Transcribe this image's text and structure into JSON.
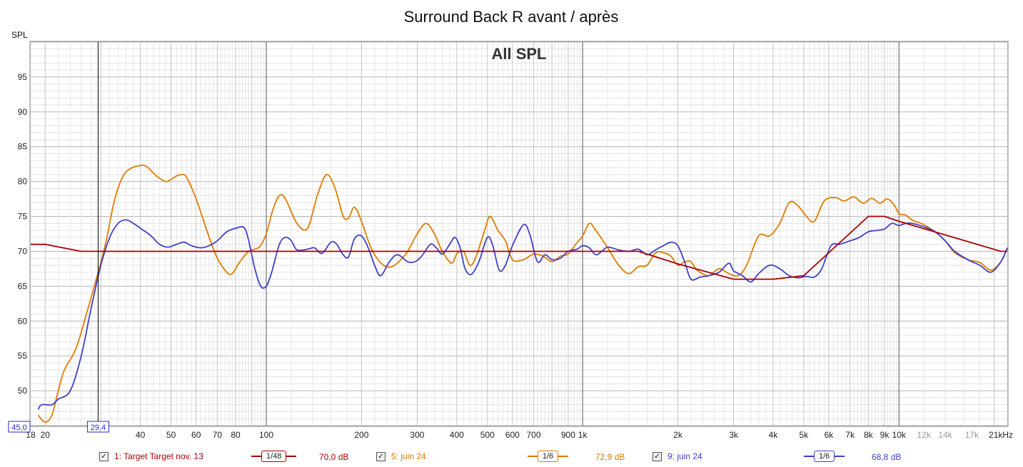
{
  "chart_data": {
    "type": "line",
    "title": "Surround Back R avant / après",
    "subtitle": "All SPL",
    "ylabel": "SPL",
    "xscale": "log",
    "xlim": [
      18,
      22000
    ],
    "ylim": [
      45,
      100
    ],
    "y_ticks": [
      50,
      55,
      60,
      65,
      70,
      75,
      80,
      85,
      90,
      95
    ],
    "x_tick_labels": [
      {
        "f": 18,
        "label": "18"
      },
      {
        "f": 20,
        "label": "20"
      },
      {
        "f": 40,
        "label": "40"
      },
      {
        "f": 50,
        "label": "50"
      },
      {
        "f": 60,
        "label": "60"
      },
      {
        "f": 70,
        "label": "70"
      },
      {
        "f": 80,
        "label": "80"
      },
      {
        "f": 100,
        "label": "100"
      },
      {
        "f": 200,
        "label": "200"
      },
      {
        "f": 300,
        "label": "300"
      },
      {
        "f": 400,
        "label": "400"
      },
      {
        "f": 500,
        "label": "500"
      },
      {
        "f": 600,
        "label": "600"
      },
      {
        "f": 700,
        "label": "700"
      },
      {
        "f": 900,
        "label": "900"
      },
      {
        "f": 1000,
        "label": "1k"
      },
      {
        "f": 2000,
        "label": "2k"
      },
      {
        "f": 3000,
        "label": "3k"
      },
      {
        "f": 4000,
        "label": "4k"
      },
      {
        "f": 5000,
        "label": "5k"
      },
      {
        "f": 6000,
        "label": "6k"
      },
      {
        "f": 7000,
        "label": "7k"
      },
      {
        "f": 8000,
        "label": "8k"
      },
      {
        "f": 9000,
        "label": "9k"
      },
      {
        "f": 10000,
        "label": "10k"
      },
      {
        "f": 12000,
        "label": "12k"
      },
      {
        "f": 14000,
        "label": "14k"
      },
      {
        "f": 17000,
        "label": "17k"
      },
      {
        "f": 21000,
        "label": "21kHz"
      }
    ],
    "cursor": {
      "x_label": "29,4",
      "y_label": "45,0",
      "x_value": 29.4
    },
    "series": [
      {
        "name": "1: Target Target nov. 13",
        "color": "#aa0000",
        "smoothing": "1/48",
        "level": "70,0 dB",
        "points": [
          [
            18,
            71
          ],
          [
            20,
            71
          ],
          [
            26,
            70
          ],
          [
            100,
            70
          ],
          [
            1000,
            70
          ],
          [
            1500,
            70
          ],
          [
            2000,
            68.2
          ],
          [
            3000,
            66
          ],
          [
            4000,
            66
          ],
          [
            5000,
            66.5
          ],
          [
            8000,
            75
          ],
          [
            9000,
            75
          ],
          [
            10000,
            74.3
          ],
          [
            21000,
            70
          ],
          [
            22000,
            70
          ]
        ]
      },
      {
        "name": "5: juin 24",
        "color": "#e07b00",
        "smoothing": "1/6",
        "level": "72,9 dB",
        "points": [
          [
            19,
            46.5
          ],
          [
            20,
            45.5
          ],
          [
            21,
            46.5
          ],
          [
            22,
            50
          ],
          [
            23,
            53
          ],
          [
            25,
            56
          ],
          [
            27,
            61
          ],
          [
            29,
            66
          ],
          [
            31,
            71
          ],
          [
            33,
            77
          ],
          [
            35,
            80.5
          ],
          [
            37,
            81.8
          ],
          [
            40,
            82.3
          ],
          [
            42,
            82.1
          ],
          [
            45,
            80.8
          ],
          [
            48,
            80
          ],
          [
            50,
            80.3
          ],
          [
            52,
            80.8
          ],
          [
            54,
            81
          ],
          [
            56,
            80.6
          ],
          [
            60,
            77.5
          ],
          [
            66,
            72
          ],
          [
            70,
            69
          ],
          [
            75,
            67
          ],
          [
            78,
            66.8
          ],
          [
            82,
            68.3
          ],
          [
            88,
            70
          ],
          [
            95,
            70.6
          ],
          [
            100,
            72.5
          ],
          [
            105,
            76
          ],
          [
            110,
            78
          ],
          [
            115,
            77.5
          ],
          [
            125,
            74
          ],
          [
            135,
            73.3
          ],
          [
            145,
            78
          ],
          [
            155,
            81
          ],
          [
            165,
            79
          ],
          [
            175,
            75
          ],
          [
            182,
            74.8
          ],
          [
            190,
            76.3
          ],
          [
            200,
            74.3
          ],
          [
            210,
            71.5
          ],
          [
            220,
            69.5
          ],
          [
            235,
            68
          ],
          [
            250,
            67.8
          ],
          [
            265,
            68.7
          ],
          [
            280,
            70
          ],
          [
            300,
            72.5
          ],
          [
            320,
            74
          ],
          [
            340,
            72.5
          ],
          [
            360,
            70
          ],
          [
            385,
            68.3
          ],
          [
            400,
            69.6
          ],
          [
            420,
            70
          ],
          [
            440,
            68
          ],
          [
            460,
            69.2
          ],
          [
            490,
            73
          ],
          [
            510,
            75
          ],
          [
            540,
            73
          ],
          [
            570,
            71.5
          ],
          [
            600,
            68.8
          ],
          [
            650,
            68.8
          ],
          [
            700,
            69.6
          ],
          [
            750,
            69.3
          ],
          [
            800,
            68.5
          ],
          [
            850,
            69.3
          ],
          [
            900,
            69.6
          ],
          [
            950,
            71
          ],
          [
            1000,
            72.2
          ],
          [
            1050,
            74
          ],
          [
            1100,
            73
          ],
          [
            1200,
            70.5
          ],
          [
            1300,
            68
          ],
          [
            1400,
            66.8
          ],
          [
            1500,
            67.8
          ],
          [
            1600,
            68
          ],
          [
            1700,
            69.8
          ],
          [
            1800,
            69.8
          ],
          [
            1900,
            69.3
          ],
          [
            2000,
            68
          ],
          [
            2100,
            68.5
          ],
          [
            2200,
            68.5
          ],
          [
            2300,
            67.3
          ],
          [
            2500,
            66.5
          ],
          [
            2700,
            67.5
          ],
          [
            2900,
            66.8
          ],
          [
            3100,
            66.5
          ],
          [
            3300,
            68
          ],
          [
            3600,
            72.2
          ],
          [
            3900,
            72.2
          ],
          [
            4200,
            74
          ],
          [
            4500,
            77
          ],
          [
            4800,
            76.5
          ],
          [
            5100,
            75
          ],
          [
            5400,
            74.3
          ],
          [
            5800,
            77.2
          ],
          [
            6300,
            77.7
          ],
          [
            6700,
            77.2
          ],
          [
            7200,
            77.8
          ],
          [
            7700,
            76.9
          ],
          [
            8200,
            77.6
          ],
          [
            8700,
            76.9
          ],
          [
            9200,
            77.5
          ],
          [
            9700,
            76.5
          ],
          [
            10000,
            75.4
          ],
          [
            10500,
            75.2
          ],
          [
            11000,
            74.5
          ],
          [
            12000,
            73.8
          ],
          [
            13000,
            72.8
          ],
          [
            14000,
            71.5
          ],
          [
            15000,
            69.8
          ],
          [
            16500,
            68.8
          ],
          [
            18000,
            68.4
          ],
          [
            19500,
            67.3
          ],
          [
            21000,
            68.5
          ],
          [
            22000,
            70.5
          ]
        ]
      },
      {
        "name": "9: juin 24",
        "color": "#4040c8",
        "smoothing": "1/6",
        "level": "68,8 dB",
        "points": [
          [
            19,
            47.3
          ],
          [
            19.5,
            48
          ],
          [
            21,
            48
          ],
          [
            22,
            48.8
          ],
          [
            24,
            50
          ],
          [
            26,
            55
          ],
          [
            28,
            62
          ],
          [
            30,
            68
          ],
          [
            32,
            72
          ],
          [
            34,
            74
          ],
          [
            36,
            74.5
          ],
          [
            38,
            74
          ],
          [
            40,
            73.3
          ],
          [
            43,
            72.3
          ],
          [
            46,
            71
          ],
          [
            49,
            70.6
          ],
          [
            52,
            71
          ],
          [
            55,
            71.3
          ],
          [
            58,
            70.8
          ],
          [
            62,
            70.5
          ],
          [
            66,
            70.8
          ],
          [
            70,
            71.5
          ],
          [
            75,
            72.8
          ],
          [
            80,
            73.3
          ],
          [
            85,
            73.4
          ],
          [
            88,
            71.5
          ],
          [
            92,
            67.5
          ],
          [
            96,
            65
          ],
          [
            100,
            65
          ],
          [
            104,
            67
          ],
          [
            110,
            71
          ],
          [
            115,
            72
          ],
          [
            120,
            71.5
          ],
          [
            125,
            70.2
          ],
          [
            135,
            70.3
          ],
          [
            142,
            70.5
          ],
          [
            150,
            69.7
          ],
          [
            160,
            71.3
          ],
          [
            167,
            71
          ],
          [
            175,
            69.5
          ],
          [
            182,
            69.2
          ],
          [
            190,
            71.8
          ],
          [
            200,
            72.2
          ],
          [
            210,
            70.5
          ],
          [
            220,
            68
          ],
          [
            230,
            66.5
          ],
          [
            245,
            68.5
          ],
          [
            260,
            69.5
          ],
          [
            280,
            68.5
          ],
          [
            295,
            68.5
          ],
          [
            310,
            69.3
          ],
          [
            330,
            71
          ],
          [
            345,
            70.5
          ],
          [
            360,
            69.6
          ],
          [
            380,
            71
          ],
          [
            395,
            72
          ],
          [
            410,
            70.5
          ],
          [
            425,
            67.5
          ],
          [
            445,
            66.7
          ],
          [
            470,
            68.5
          ],
          [
            500,
            72
          ],
          [
            520,
            70.8
          ],
          [
            545,
            67.3
          ],
          [
            570,
            68
          ],
          [
            600,
            70.8
          ],
          [
            650,
            73.8
          ],
          [
            680,
            72.5
          ],
          [
            720,
            68.5
          ],
          [
            760,
            69.5
          ],
          [
            800,
            68.8
          ],
          [
            850,
            69
          ],
          [
            900,
            70
          ],
          [
            960,
            70.3
          ],
          [
            1000,
            70.8
          ],
          [
            1050,
            70.5
          ],
          [
            1100,
            69.5
          ],
          [
            1150,
            70
          ],
          [
            1200,
            70.6
          ],
          [
            1300,
            70.2
          ],
          [
            1400,
            70
          ],
          [
            1500,
            70.3
          ],
          [
            1600,
            69.5
          ],
          [
            1700,
            70.2
          ],
          [
            1800,
            70.8
          ],
          [
            1900,
            71.3
          ],
          [
            2000,
            70.8
          ],
          [
            2100,
            68.5
          ],
          [
            2200,
            66
          ],
          [
            2350,
            66.3
          ],
          [
            2500,
            66.5
          ],
          [
            2700,
            67
          ],
          [
            2900,
            68.3
          ],
          [
            3000,
            67.2
          ],
          [
            3200,
            66.5
          ],
          [
            3400,
            65.6
          ],
          [
            3600,
            66.8
          ],
          [
            3900,
            68
          ],
          [
            4200,
            67.5
          ],
          [
            4500,
            66.5
          ],
          [
            4800,
            66.2
          ],
          [
            5100,
            66.4
          ],
          [
            5400,
            66.3
          ],
          [
            5700,
            67.5
          ],
          [
            6100,
            70.8
          ],
          [
            6500,
            71
          ],
          [
            7000,
            71.5
          ],
          [
            7500,
            72
          ],
          [
            8000,
            72.8
          ],
          [
            8500,
            73
          ],
          [
            9000,
            73.2
          ],
          [
            9500,
            74
          ],
          [
            10000,
            73.7
          ],
          [
            10500,
            74
          ],
          [
            11000,
            74
          ],
          [
            12000,
            73.5
          ],
          [
            13000,
            72.8
          ],
          [
            14000,
            71.5
          ],
          [
            15000,
            70
          ],
          [
            16500,
            68.8
          ],
          [
            18000,
            68
          ],
          [
            19500,
            67
          ],
          [
            21000,
            68.5
          ],
          [
            22000,
            70.5
          ]
        ]
      }
    ]
  },
  "legend": {
    "items": [
      {
        "label": "1: Target Target nov. 13",
        "smooth": "1/48",
        "db": "70,0 dB",
        "color": "#aa0000"
      },
      {
        "label": "5: juin 24",
        "smooth": "1/6",
        "db": "72,9 dB",
        "color": "#e07b00"
      },
      {
        "label": "9: juin 24",
        "smooth": "1/6",
        "db": "68,8 dB",
        "color": "#4040c8"
      }
    ],
    "check_glyph": "✓"
  }
}
